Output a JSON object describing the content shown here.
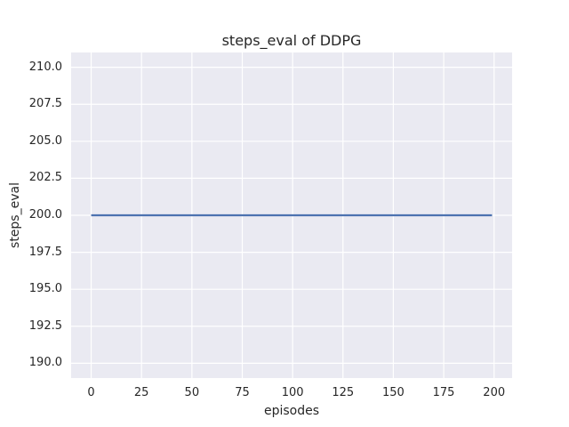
{
  "chart_data": {
    "type": "line",
    "title": "steps_eval of DDPG",
    "xlabel": "episodes",
    "ylabel": "steps_eval",
    "xlim": [
      -9.95,
      208.95
    ],
    "ylim": [
      189,
      211
    ],
    "xticks": {
      "values": [
        0,
        25,
        50,
        75,
        100,
        125,
        150,
        175,
        200
      ],
      "labels": [
        "0",
        "25",
        "50",
        "75",
        "100",
        "125",
        "150",
        "175",
        "200"
      ]
    },
    "yticks": {
      "values": [
        190,
        192.5,
        195,
        197.5,
        200,
        202.5,
        205,
        207.5,
        210
      ],
      "labels": [
        "190.0",
        "192.5",
        "195.0",
        "197.5",
        "200.0",
        "202.5",
        "205.0",
        "207.5",
        "210.0"
      ]
    },
    "grid": true,
    "legend_position": "none",
    "style": "seaborn-darkgrid",
    "colors": {
      "figure_bg": "#ffffff",
      "axes_bg": "#eaeaf2",
      "grid": "#ffffff",
      "text": "#262626",
      "line": "#4c72b0"
    },
    "series": [
      {
        "name": "steps_eval of DDPG",
        "x": [
          0,
          199
        ],
        "y": [
          200,
          200
        ],
        "color": "#4c72b0"
      }
    ]
  }
}
